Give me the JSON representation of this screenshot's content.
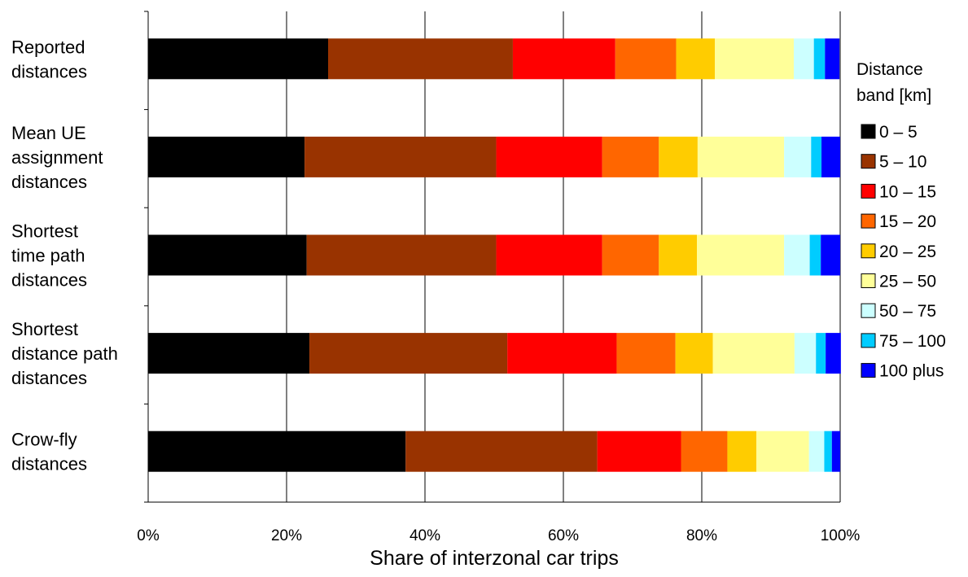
{
  "chart_data": {
    "type": "bar",
    "orientation": "horizontal",
    "stacked": true,
    "normalized": true,
    "title": "",
    "xlabel": "Share of interzonal car trips",
    "ylabel": "",
    "xlim": [
      0,
      100
    ],
    "x_ticks": [
      "0%",
      "20%",
      "40%",
      "60%",
      "80%",
      "100%"
    ],
    "grid": "vertical",
    "legend_position": "right",
    "legend_title_lines": [
      "Distance",
      "band [km]"
    ],
    "categories": [
      [
        "Reported",
        "distances"
      ],
      [
        "Mean UE",
        "assignment",
        "distances"
      ],
      [
        "Shortest",
        "time path",
        "distances"
      ],
      [
        "Shortest",
        "distance path",
        "distances"
      ],
      [
        "Crow-fly",
        "distances"
      ]
    ],
    "series": [
      {
        "name": "0 – 5",
        "color": "#000000",
        "values": [
          26.0,
          22.6,
          22.9,
          23.3,
          37.2
        ]
      },
      {
        "name": "5 – 10",
        "color": "#993300",
        "values": [
          26.7,
          27.7,
          27.4,
          28.6,
          27.7
        ]
      },
      {
        "name": "10 – 15",
        "color": "#ff0000",
        "values": [
          14.8,
          15.3,
          15.3,
          15.8,
          12.1
        ]
      },
      {
        "name": "15 – 20",
        "color": "#ff6600",
        "values": [
          8.8,
          8.2,
          8.2,
          8.5,
          6.7
        ]
      },
      {
        "name": "20 – 25",
        "color": "#ffcc00",
        "values": [
          5.6,
          5.6,
          5.5,
          5.4,
          4.2
        ]
      },
      {
        "name": "25 – 50",
        "color": "#ffff99",
        "values": [
          11.4,
          12.5,
          12.6,
          11.8,
          7.6
        ]
      },
      {
        "name": "50 – 75",
        "color": "#ccffff",
        "values": [
          2.9,
          3.9,
          3.7,
          3.1,
          2.2
        ]
      },
      {
        "name": "75 – 100",
        "color": "#00ccff",
        "values": [
          1.6,
          1.5,
          1.6,
          1.4,
          1.1
        ]
      },
      {
        "name": "100 plus",
        "color": "#0000ff",
        "values": [
          2.1,
          2.7,
          2.8,
          2.2,
          1.2
        ]
      }
    ]
  }
}
